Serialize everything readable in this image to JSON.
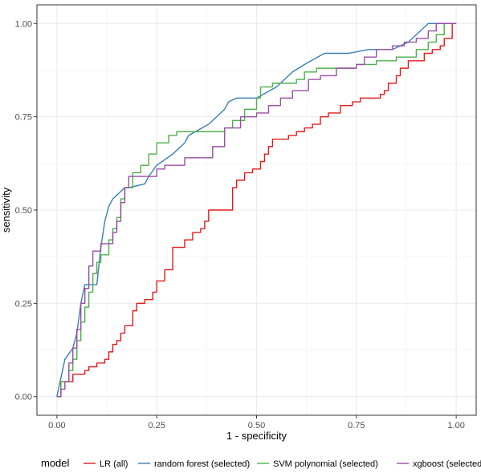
{
  "chart_data": {
    "type": "line",
    "title": "",
    "xlabel": "1 - specificity",
    "ylabel": "sensitivity",
    "xlim": [
      -0.05,
      1.05
    ],
    "ylim": [
      -0.05,
      1.05
    ],
    "xticks": [
      0.0,
      0.25,
      0.5,
      0.75,
      1.0
    ],
    "yticks": [
      0.0,
      0.25,
      0.5,
      0.75,
      1.0
    ],
    "xtick_labels": [
      "0.00",
      "0.25",
      "0.50",
      "0.75",
      "1.00"
    ],
    "ytick_labels": [
      "0.00",
      "0.25",
      "0.50",
      "0.75",
      "1.00"
    ],
    "grid": true,
    "legend": {
      "title": "model",
      "placement": "bottom"
    },
    "series": [
      {
        "name": "LR (all)",
        "color": "#E41A1C",
        "step": true,
        "points": [
          [
            0,
            0
          ],
          [
            0.01,
            0.04
          ],
          [
            0.04,
            0.04
          ],
          [
            0.04,
            0.06
          ],
          [
            0.06,
            0.06
          ],
          [
            0.07,
            0.07
          ],
          [
            0.08,
            0.08
          ],
          [
            0.1,
            0.09
          ],
          [
            0.12,
            0.1
          ],
          [
            0.13,
            0.12
          ],
          [
            0.14,
            0.14
          ],
          [
            0.15,
            0.15
          ],
          [
            0.16,
            0.17
          ],
          [
            0.17,
            0.19
          ],
          [
            0.19,
            0.23
          ],
          [
            0.2,
            0.25
          ],
          [
            0.22,
            0.26
          ],
          [
            0.24,
            0.28
          ],
          [
            0.25,
            0.31
          ],
          [
            0.27,
            0.34
          ],
          [
            0.29,
            0.4
          ],
          [
            0.32,
            0.42
          ],
          [
            0.34,
            0.44
          ],
          [
            0.36,
            0.45
          ],
          [
            0.37,
            0.47
          ],
          [
            0.38,
            0.5
          ],
          [
            0.44,
            0.53
          ],
          [
            0.44,
            0.56
          ],
          [
            0.45,
            0.58
          ],
          [
            0.47,
            0.6
          ],
          [
            0.49,
            0.61
          ],
          [
            0.51,
            0.63
          ],
          [
            0.52,
            0.65
          ],
          [
            0.53,
            0.67
          ],
          [
            0.54,
            0.69
          ],
          [
            0.58,
            0.7
          ],
          [
            0.6,
            0.71
          ],
          [
            0.62,
            0.72
          ],
          [
            0.64,
            0.73
          ],
          [
            0.66,
            0.75
          ],
          [
            0.68,
            0.76
          ],
          [
            0.71,
            0.78
          ],
          [
            0.74,
            0.79
          ],
          [
            0.76,
            0.8
          ],
          [
            0.81,
            0.81
          ],
          [
            0.82,
            0.82
          ],
          [
            0.83,
            0.84
          ],
          [
            0.85,
            0.86
          ],
          [
            0.86,
            0.88
          ],
          [
            0.88,
            0.9
          ],
          [
            0.92,
            0.92
          ],
          [
            0.94,
            0.93
          ],
          [
            0.96,
            0.94
          ],
          [
            0.97,
            0.96
          ],
          [
            0.99,
            1.0
          ],
          [
            1.0,
            1.0
          ]
        ]
      },
      {
        "name": "random forest (selected)",
        "color": "#377EB8",
        "step": false,
        "points": [
          [
            0,
            0
          ],
          [
            0.02,
            0.1
          ],
          [
            0.04,
            0.13
          ],
          [
            0.05,
            0.17
          ],
          [
            0.06,
            0.25
          ],
          [
            0.07,
            0.3
          ],
          [
            0.08,
            0.3
          ],
          [
            0.1,
            0.3
          ],
          [
            0.11,
            0.4
          ],
          [
            0.12,
            0.47
          ],
          [
            0.13,
            0.51
          ],
          [
            0.14,
            0.53
          ],
          [
            0.16,
            0.55
          ],
          [
            0.17,
            0.56
          ],
          [
            0.18,
            0.56
          ],
          [
            0.22,
            0.57
          ],
          [
            0.23,
            0.59
          ],
          [
            0.25,
            0.62
          ],
          [
            0.29,
            0.65
          ],
          [
            0.32,
            0.68
          ],
          [
            0.33,
            0.7
          ],
          [
            0.38,
            0.73
          ],
          [
            0.41,
            0.76
          ],
          [
            0.42,
            0.77
          ],
          [
            0.43,
            0.79
          ],
          [
            0.45,
            0.8
          ],
          [
            0.5,
            0.8
          ],
          [
            0.55,
            0.83
          ],
          [
            0.59,
            0.87
          ],
          [
            0.62,
            0.89
          ],
          [
            0.67,
            0.92
          ],
          [
            0.73,
            0.92
          ],
          [
            0.78,
            0.93
          ],
          [
            0.84,
            0.93
          ],
          [
            0.88,
            0.95
          ],
          [
            0.91,
            0.98
          ],
          [
            0.93,
            1.0
          ],
          [
            1.0,
            1.0
          ]
        ]
      },
      {
        "name": "SVM polynomial (selected)",
        "color": "#4DAF4A",
        "step": true,
        "points": [
          [
            0,
            0
          ],
          [
            0.01,
            0.04
          ],
          [
            0.03,
            0.07
          ],
          [
            0.04,
            0.1
          ],
          [
            0.05,
            0.15
          ],
          [
            0.06,
            0.2
          ],
          [
            0.07,
            0.24
          ],
          [
            0.08,
            0.28
          ],
          [
            0.09,
            0.33
          ],
          [
            0.1,
            0.36
          ],
          [
            0.11,
            0.38
          ],
          [
            0.13,
            0.42
          ],
          [
            0.14,
            0.45
          ],
          [
            0.15,
            0.48
          ],
          [
            0.16,
            0.53
          ],
          [
            0.17,
            0.56
          ],
          [
            0.19,
            0.6
          ],
          [
            0.21,
            0.62
          ],
          [
            0.23,
            0.65
          ],
          [
            0.25,
            0.68
          ],
          [
            0.28,
            0.7
          ],
          [
            0.3,
            0.71
          ],
          [
            0.35,
            0.71
          ],
          [
            0.37,
            0.71
          ],
          [
            0.42,
            0.72
          ],
          [
            0.44,
            0.74
          ],
          [
            0.47,
            0.77
          ],
          [
            0.5,
            0.8
          ],
          [
            0.51,
            0.83
          ],
          [
            0.54,
            0.84
          ],
          [
            0.57,
            0.84
          ],
          [
            0.6,
            0.85
          ],
          [
            0.62,
            0.87
          ],
          [
            0.65,
            0.88
          ],
          [
            0.7,
            0.88
          ],
          [
            0.75,
            0.89
          ],
          [
            0.8,
            0.9
          ],
          [
            0.85,
            0.91
          ],
          [
            0.88,
            0.91
          ],
          [
            0.9,
            0.93
          ],
          [
            0.93,
            0.95
          ],
          [
            0.95,
            0.97
          ],
          [
            0.97,
            1.0
          ],
          [
            1.0,
            1.0
          ]
        ]
      },
      {
        "name": "xgboost (selected)",
        "color": "#984EA3",
        "step": true,
        "points": [
          [
            0,
            0
          ],
          [
            0.01,
            0.02
          ],
          [
            0.02,
            0.04
          ],
          [
            0.03,
            0.09
          ],
          [
            0.04,
            0.13
          ],
          [
            0.05,
            0.18
          ],
          [
            0.06,
            0.25
          ],
          [
            0.07,
            0.29
          ],
          [
            0.08,
            0.35
          ],
          [
            0.09,
            0.39
          ],
          [
            0.11,
            0.41
          ],
          [
            0.13,
            0.41
          ],
          [
            0.14,
            0.44
          ],
          [
            0.15,
            0.47
          ],
          [
            0.16,
            0.52
          ],
          [
            0.17,
            0.56
          ],
          [
            0.18,
            0.59
          ],
          [
            0.2,
            0.59
          ],
          [
            0.25,
            0.61
          ],
          [
            0.27,
            0.62
          ],
          [
            0.32,
            0.64
          ],
          [
            0.35,
            0.64
          ],
          [
            0.39,
            0.67
          ],
          [
            0.42,
            0.72
          ],
          [
            0.46,
            0.75
          ],
          [
            0.5,
            0.76
          ],
          [
            0.53,
            0.78
          ],
          [
            0.56,
            0.8
          ],
          [
            0.59,
            0.82
          ],
          [
            0.63,
            0.85
          ],
          [
            0.66,
            0.86
          ],
          [
            0.7,
            0.88
          ],
          [
            0.75,
            0.89
          ],
          [
            0.77,
            0.91
          ],
          [
            0.8,
            0.93
          ],
          [
            0.84,
            0.94
          ],
          [
            0.87,
            0.95
          ],
          [
            0.9,
            0.96
          ],
          [
            0.93,
            0.98
          ],
          [
            0.95,
            1.0
          ],
          [
            1.0,
            1.0
          ]
        ]
      }
    ]
  }
}
